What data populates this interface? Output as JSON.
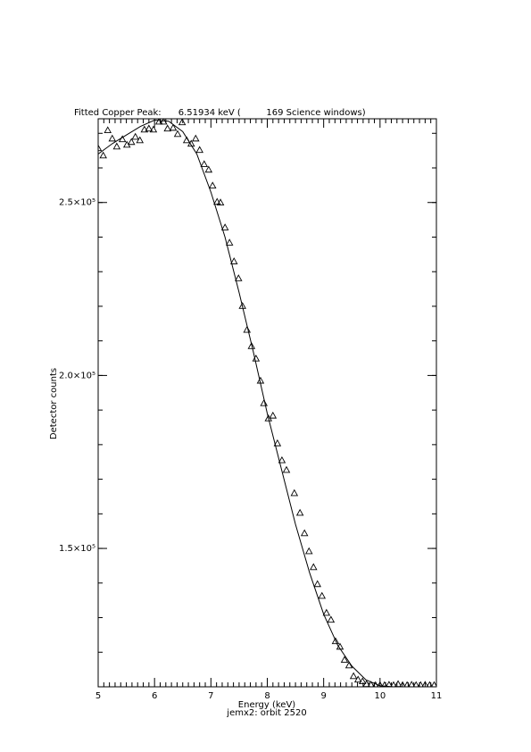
{
  "chart_data": {
    "type": "scatter",
    "title": "Fitted Copper Peak:      6.51934 keV (         169 Science windows)",
    "xlabel": "Energy (keV)",
    "subtitle": "jemx2: orbit 2520",
    "ylabel": "Detector counts",
    "xlim": [
      5,
      11
    ],
    "ylim": [
      110000,
      274200
    ],
    "xticks": [
      5,
      6,
      7,
      8,
      9,
      10,
      11
    ],
    "yticks": [
      {
        "value": 150000,
        "label": "1.5×10⁵"
      },
      {
        "value": 200000,
        "label": "2.0×10⁵"
      },
      {
        "value": 250000,
        "label": "2.5×10⁵"
      }
    ],
    "xminor_ticks": 10,
    "yminor_ticks": 5,
    "color": "#000000",
    "series": [
      {
        "marker": "triangle",
        "x": [
          5.0,
          5.09,
          5.17,
          5.25,
          5.33,
          5.43,
          5.51,
          5.59,
          5.66,
          5.74,
          5.82,
          5.9,
          5.98,
          6.08,
          6.16,
          6.23,
          6.33,
          6.41,
          6.49,
          6.57,
          6.65,
          6.73,
          6.8,
          6.88,
          6.96,
          7.03,
          7.11,
          7.17,
          7.25,
          7.33,
          7.41,
          7.49,
          7.56,
          7.64,
          7.72,
          7.8,
          7.88,
          7.94,
          8.02,
          8.1,
          8.18,
          8.26,
          8.34,
          8.48,
          8.58,
          8.66,
          8.74,
          8.82,
          8.89,
          8.97,
          9.05,
          9.13,
          9.21,
          9.29,
          9.37,
          9.45,
          9.53,
          9.61,
          9.69,
          9.76,
          9.84,
          9.92,
          10.0,
          10.08,
          10.16,
          10.24,
          10.32,
          10.4,
          10.48,
          10.56,
          10.64,
          10.72,
          10.8,
          10.88,
          10.96
        ],
        "values": [
          265700,
          263600,
          270900,
          268500,
          266200,
          268300,
          266700,
          267500,
          269000,
          268000,
          271100,
          271400,
          271100,
          273400,
          273400,
          271400,
          271600,
          269800,
          273200,
          268000,
          267000,
          268500,
          265200,
          261100,
          259500,
          254900,
          250200,
          250000,
          242800,
          238400,
          233000,
          228100,
          220100,
          213200,
          208500,
          204900,
          198500,
          192000,
          187600,
          188400,
          180400,
          175500,
          172700,
          166000,
          160300,
          154400,
          149200,
          144600,
          139700,
          136300,
          131400,
          129400,
          123200,
          121600,
          117800,
          116200,
          113100,
          112100,
          111600,
          110800,
          110600,
          110500,
          110500,
          110500,
          110600,
          110500,
          110800,
          110500,
          110500,
          110600,
          110500,
          110500,
          110600,
          110500,
          110500
        ]
      },
      {
        "marker": "line",
        "x": [
          5.0,
          5.25,
          5.5,
          5.75,
          6.0,
          6.25,
          6.5,
          6.75,
          7.0,
          7.25,
          7.5,
          7.75,
          8.0,
          8.25,
          8.5,
          8.75,
          9.0,
          9.25,
          9.5,
          9.75,
          10.0,
          10.25,
          10.5,
          11.0
        ],
        "values": [
          264000,
          267000,
          269500,
          272000,
          273800,
          273500,
          270500,
          264000,
          253000,
          240000,
          224000,
          207000,
          189000,
          173000,
          157000,
          143000,
          131000,
          122000,
          116000,
          112000,
          110300,
          110000,
          110000,
          110000
        ]
      }
    ]
  }
}
